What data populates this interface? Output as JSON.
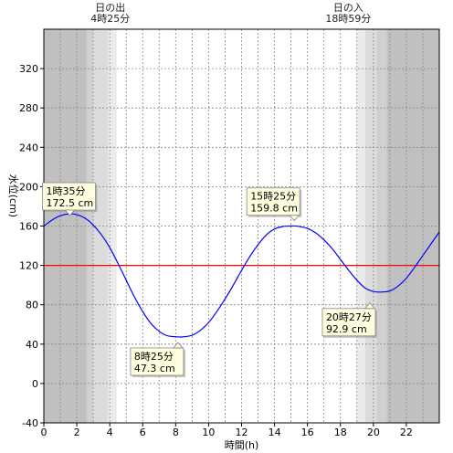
{
  "chart_data": {
    "type": "line",
    "xlabel": "時間(h)",
    "ylabel": "水位(cm)",
    "xlim": [
      0,
      24
    ],
    "ylim": [
      -40,
      360
    ],
    "xticks": [
      0,
      2,
      4,
      6,
      8,
      10,
      12,
      14,
      16,
      18,
      20,
      22
    ],
    "yticks": [
      -40,
      0,
      40,
      80,
      120,
      160,
      200,
      240,
      280,
      320
    ],
    "reference_line": {
      "y": 120,
      "color": "#ff0000"
    },
    "sunrise": {
      "label": "日の出",
      "time": "4時25分",
      "hour": 4.42
    },
    "sunset": {
      "label": "日の入",
      "time": "18時59分",
      "hour": 18.98
    },
    "shading": [
      {
        "from": 0,
        "to": 2.6,
        "color": "#c0c0c0"
      },
      {
        "from": 2.6,
        "to": 3.0,
        "color": "#d0d0d0"
      },
      {
        "from": 3.0,
        "to": 3.9,
        "color": "#dcdcdc"
      },
      {
        "from": 3.9,
        "to": 4.42,
        "color": "#ebebeb"
      },
      {
        "from": 18.98,
        "to": 19.5,
        "color": "#ebebeb"
      },
      {
        "from": 19.5,
        "to": 20.2,
        "color": "#dcdcdc"
      },
      {
        "from": 20.2,
        "to": 20.8,
        "color": "#d0d0d0"
      },
      {
        "from": 20.8,
        "to": 24,
        "color": "#c0c0c0"
      }
    ],
    "series": [
      {
        "color": "#0000ff",
        "x": [
          0,
          0.5,
          1,
          1.58,
          2,
          2.5,
          3,
          3.5,
          4,
          4.5,
          5,
          5.5,
          6,
          6.5,
          7,
          7.5,
          8,
          8.42,
          9,
          9.5,
          10,
          10.5,
          11,
          11.5,
          12,
          12.5,
          13,
          13.5,
          14,
          14.5,
          15,
          15.42,
          16,
          16.5,
          17,
          17.5,
          18,
          18.5,
          19,
          19.5,
          20,
          20.45,
          21,
          21.5,
          22,
          22.5,
          23,
          23.5,
          24
        ],
        "y": [
          160,
          166,
          170.5,
          172.5,
          171.5,
          168,
          161,
          151,
          138,
          122,
          105,
          88,
          73,
          61,
          53,
          48.5,
          47.5,
          47.3,
          49,
          54,
          62,
          73,
          86,
          100,
          115,
          129,
          141,
          151,
          157,
          159.5,
          160,
          159.8,
          157.5,
          153,
          146,
          137,
          126,
          115,
          105,
          97,
          93.5,
          92.9,
          94,
          99,
          107,
          118,
          130,
          142,
          154
        ]
      }
    ],
    "annotations": [
      {
        "time": "1時35分",
        "value": "172.5 cm",
        "x": 1.58,
        "y": 172.5
      },
      {
        "time": "8時25分",
        "value": "47.3 cm",
        "x": 8.42,
        "y": 47.3
      },
      {
        "time": "15時25分",
        "value": "159.8 cm",
        "x": 15.42,
        "y": 159.8
      },
      {
        "time": "20時27分",
        "value": "92.9 cm",
        "x": 20.45,
        "y": 92.9
      }
    ]
  }
}
